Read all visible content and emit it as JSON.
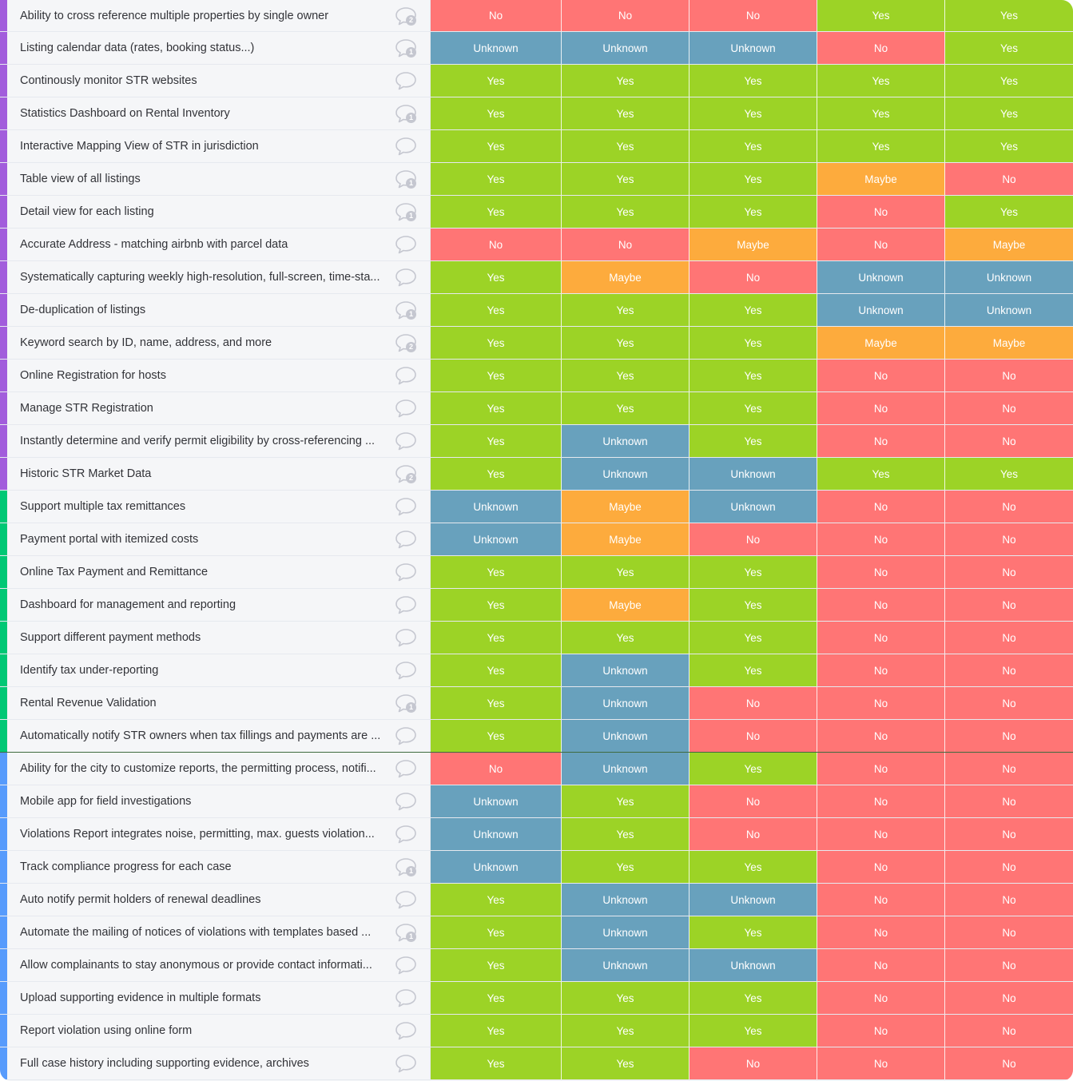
{
  "status_colors": {
    "Yes": "#9cd326",
    "No": "#ff7575",
    "Maybe": "#fdab3d",
    "Unknown": "#68a1bd"
  },
  "group_colors": {
    "purple": "#a25ddc",
    "green": "#00c875",
    "blue": "#579bfc"
  },
  "groups": [
    {
      "color": "#a25ddc",
      "rows": [
        {
          "name": "Ability to cross reference multiple properties by single owner",
          "comments": "2",
          "values": [
            "No",
            "No",
            "No",
            "Yes",
            "Yes"
          ]
        },
        {
          "name": "Listing calendar data (rates, booking status...)",
          "comments": "1",
          "values": [
            "Unknown",
            "Unknown",
            "Unknown",
            "No",
            "Yes"
          ]
        },
        {
          "name": "Continously monitor STR websites",
          "comments": "",
          "values": [
            "Yes",
            "Yes",
            "Yes",
            "Yes",
            "Yes"
          ]
        },
        {
          "name": "Statistics Dashboard on Rental Inventory",
          "comments": "1",
          "values": [
            "Yes",
            "Yes",
            "Yes",
            "Yes",
            "Yes"
          ]
        },
        {
          "name": "Interactive Mapping View of STR in jurisdiction",
          "comments": "",
          "values": [
            "Yes",
            "Yes",
            "Yes",
            "Yes",
            "Yes"
          ]
        },
        {
          "name": "Table view of all listings",
          "comments": "1",
          "values": [
            "Yes",
            "Yes",
            "Yes",
            "Maybe",
            "No"
          ]
        },
        {
          "name": "Detail view for each listing",
          "comments": "1",
          "values": [
            "Yes",
            "Yes",
            "Yes",
            "No",
            "Yes"
          ]
        },
        {
          "name": "Accurate Address - matching airbnb with parcel data",
          "comments": "",
          "values": [
            "No",
            "No",
            "Maybe",
            "No",
            "Maybe"
          ]
        },
        {
          "name": "Systematically capturing weekly high-resolution, full-screen, time-sta...",
          "comments": "",
          "values": [
            "Yes",
            "Maybe",
            "No",
            "Unknown",
            "Unknown"
          ]
        },
        {
          "name": "De-duplication of listings",
          "comments": "1",
          "values": [
            "Yes",
            "Yes",
            "Yes",
            "Unknown",
            "Unknown"
          ]
        },
        {
          "name": "Keyword search by ID, name, address, and more",
          "comments": "2",
          "values": [
            "Yes",
            "Yes",
            "Yes",
            "Maybe",
            "Maybe"
          ]
        },
        {
          "name": "Online Registration for hosts",
          "comments": "",
          "values": [
            "Yes",
            "Yes",
            "Yes",
            "No",
            "No"
          ]
        },
        {
          "name": "Manage STR Registration",
          "comments": "",
          "values": [
            "Yes",
            "Yes",
            "Yes",
            "No",
            "No"
          ]
        },
        {
          "name": "Instantly determine and verify permit eligibility by cross-referencing ...",
          "comments": "",
          "values": [
            "Yes",
            "Unknown",
            "Yes",
            "No",
            "No"
          ]
        },
        {
          "name": "Historic STR Market Data",
          "comments": "2",
          "values": [
            "Yes",
            "Unknown",
            "Unknown",
            "Yes",
            "Yes"
          ]
        }
      ]
    },
    {
      "color": "#00c875",
      "rows": [
        {
          "name": "Support multiple tax remittances",
          "comments": "",
          "values": [
            "Unknown",
            "Maybe",
            "Unknown",
            "No",
            "No"
          ]
        },
        {
          "name": "Payment portal with itemized costs",
          "comments": "",
          "values": [
            "Unknown",
            "Maybe",
            "No",
            "No",
            "No"
          ]
        },
        {
          "name": "Online Tax Payment and Remittance",
          "comments": "",
          "values": [
            "Yes",
            "Yes",
            "Yes",
            "No",
            "No"
          ]
        },
        {
          "name": "Dashboard for management and reporting",
          "comments": "",
          "values": [
            "Yes",
            "Maybe",
            "Yes",
            "No",
            "No"
          ]
        },
        {
          "name": "Support different payment methods",
          "comments": "",
          "values": [
            "Yes",
            "Yes",
            "Yes",
            "No",
            "No"
          ]
        },
        {
          "name": "Identify tax under-reporting",
          "comments": "",
          "values": [
            "Yes",
            "Unknown",
            "Yes",
            "No",
            "No"
          ]
        },
        {
          "name": "Rental Revenue Validation",
          "comments": "1",
          "values": [
            "Yes",
            "Unknown",
            "No",
            "No",
            "No"
          ]
        },
        {
          "name": "Automatically notify STR owners when tax fillings and payments are ...",
          "comments": "",
          "values": [
            "Yes",
            "Unknown",
            "No",
            "No",
            "No"
          ]
        }
      ]
    },
    {
      "color": "#579bfc",
      "rows": [
        {
          "name": "Ability for the city to customize reports, the permitting process, notifi...",
          "comments": "",
          "values": [
            "No",
            "Unknown",
            "Yes",
            "No",
            "No"
          ]
        },
        {
          "name": "Mobile app for field investigations",
          "comments": "",
          "values": [
            "Unknown",
            "Yes",
            "No",
            "No",
            "No"
          ]
        },
        {
          "name": "Violations Report integrates noise, permitting, max. guests violation...",
          "comments": "",
          "values": [
            "Unknown",
            "Yes",
            "No",
            "No",
            "No"
          ]
        },
        {
          "name": "Track compliance progress for each case",
          "comments": "1",
          "values": [
            "Unknown",
            "Yes",
            "Yes",
            "No",
            "No"
          ]
        },
        {
          "name": "Auto notify permit holders of renewal deadlines",
          "comments": "",
          "values": [
            "Yes",
            "Unknown",
            "Unknown",
            "No",
            "No"
          ]
        },
        {
          "name": "Automate the mailing of notices of violations with templates based ...",
          "comments": "1",
          "values": [
            "Yes",
            "Unknown",
            "Yes",
            "No",
            "No"
          ]
        },
        {
          "name": "Allow complainants to stay anonymous or provide contact informati...",
          "comments": "",
          "values": [
            "Yes",
            "Unknown",
            "Unknown",
            "No",
            "No"
          ]
        },
        {
          "name": "Upload supporting evidence in multiple formats",
          "comments": "",
          "values": [
            "Yes",
            "Yes",
            "Yes",
            "No",
            "No"
          ]
        },
        {
          "name": "Report violation using online form",
          "comments": "",
          "values": [
            "Yes",
            "Yes",
            "Yes",
            "No",
            "No"
          ]
        },
        {
          "name": "Full case history including supporting evidence, archives",
          "comments": "",
          "values": [
            "Yes",
            "Yes",
            "No",
            "No",
            "No"
          ]
        }
      ]
    }
  ]
}
